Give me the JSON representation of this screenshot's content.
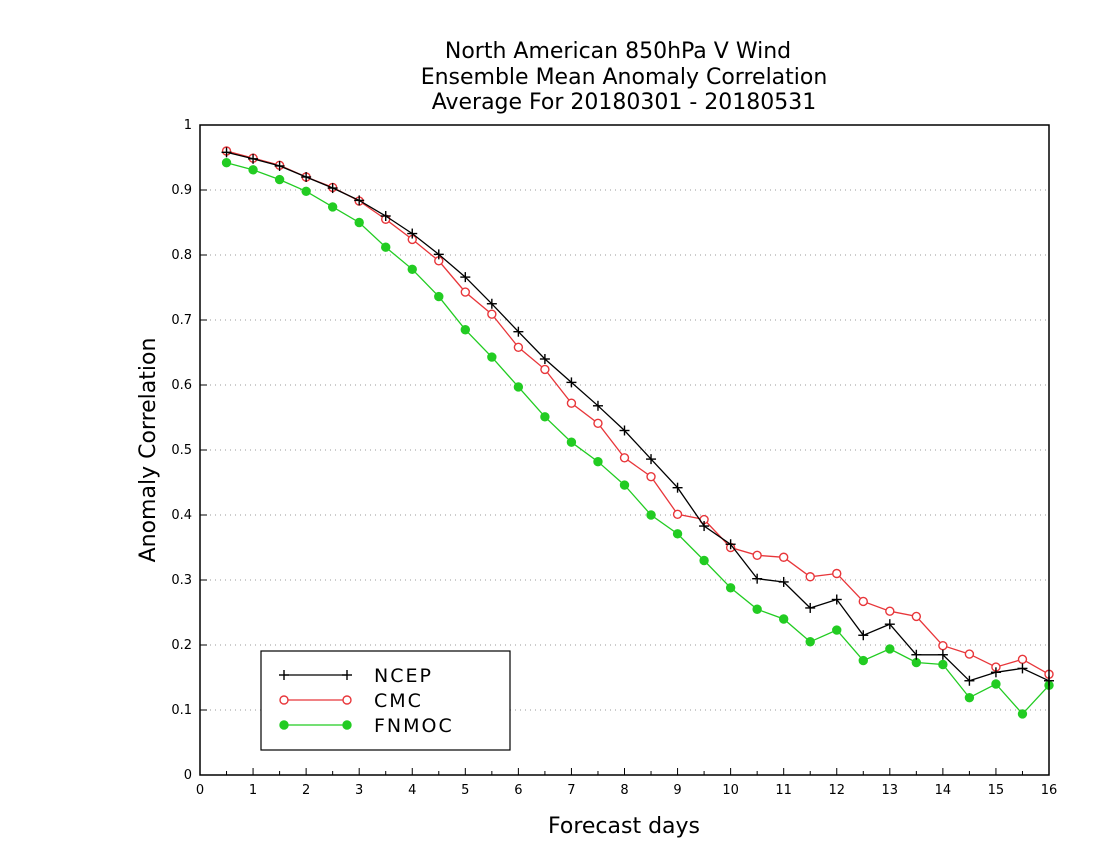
{
  "chart_data": {
    "type": "line",
    "title_lines": [
      "North American 850hPa V Wind",
      "Ensemble Mean Anomaly Correlation",
      "Average For 20180301 - 20180531"
    ],
    "xlabel": "Forecast days",
    "ylabel": "Anomaly Correlation",
    "xlim": [
      0,
      16
    ],
    "ylim": [
      0,
      1
    ],
    "x_ticks": [
      0,
      1,
      2,
      3,
      4,
      5,
      6,
      7,
      8,
      9,
      10,
      11,
      12,
      13,
      14,
      15,
      16
    ],
    "y_ticks": [
      0,
      0.1,
      0.2,
      0.3,
      0.4,
      0.5,
      0.6,
      0.7,
      0.8,
      0.9,
      1
    ],
    "y_tick_labels": [
      "0",
      "0.1",
      "0.2",
      "0.3",
      "0.4",
      "0.5",
      "0.6",
      "0.7",
      "0.8",
      "0.9",
      "1"
    ],
    "grid": "horizontal dotted",
    "legend_position": "bottom-left",
    "x": [
      0.5,
      1,
      1.5,
      2,
      2.5,
      3,
      3.5,
      4,
      4.5,
      5,
      5.5,
      6,
      6.5,
      7,
      7.5,
      8,
      8.5,
      9,
      9.5,
      10,
      10.5,
      11,
      11.5,
      12,
      12.5,
      13,
      13.5,
      14,
      14.5,
      15,
      15.5,
      16
    ],
    "series": [
      {
        "name": "NCEP",
        "color": "#000000",
        "marker": "plus",
        "values": [
          0.958,
          0.948,
          0.937,
          0.92,
          0.903,
          0.884,
          0.86,
          0.833,
          0.801,
          0.766,
          0.725,
          0.682,
          0.64,
          0.604,
          0.568,
          0.53,
          0.486,
          0.442,
          0.383,
          0.355,
          0.302,
          0.297,
          0.257,
          0.27,
          0.215,
          0.232,
          0.185,
          0.185,
          0.145,
          0.158,
          0.164,
          0.145
        ]
      },
      {
        "name": "CMC",
        "color": "#e8363a",
        "marker": "open-circle",
        "values": [
          0.96,
          0.949,
          0.938,
          0.92,
          0.904,
          0.883,
          0.855,
          0.824,
          0.791,
          0.743,
          0.709,
          0.658,
          0.624,
          0.572,
          0.541,
          0.488,
          0.459,
          0.401,
          0.393,
          0.35,
          0.338,
          0.335,
          0.305,
          0.31,
          0.267,
          0.252,
          0.244,
          0.199,
          0.186,
          0.166,
          0.178,
          0.155
        ]
      },
      {
        "name": "FNMOC",
        "color": "#22cc22",
        "marker": "filled-circle",
        "values": [
          0.942,
          0.931,
          0.916,
          0.898,
          0.874,
          0.85,
          0.812,
          0.778,
          0.736,
          0.685,
          0.643,
          0.597,
          0.551,
          0.512,
          0.482,
          0.446,
          0.4,
          0.371,
          0.33,
          0.288,
          0.255,
          0.24,
          0.205,
          0.223,
          0.176,
          0.194,
          0.173,
          0.17,
          0.119,
          0.14,
          0.094,
          0.138
        ]
      }
    ]
  }
}
